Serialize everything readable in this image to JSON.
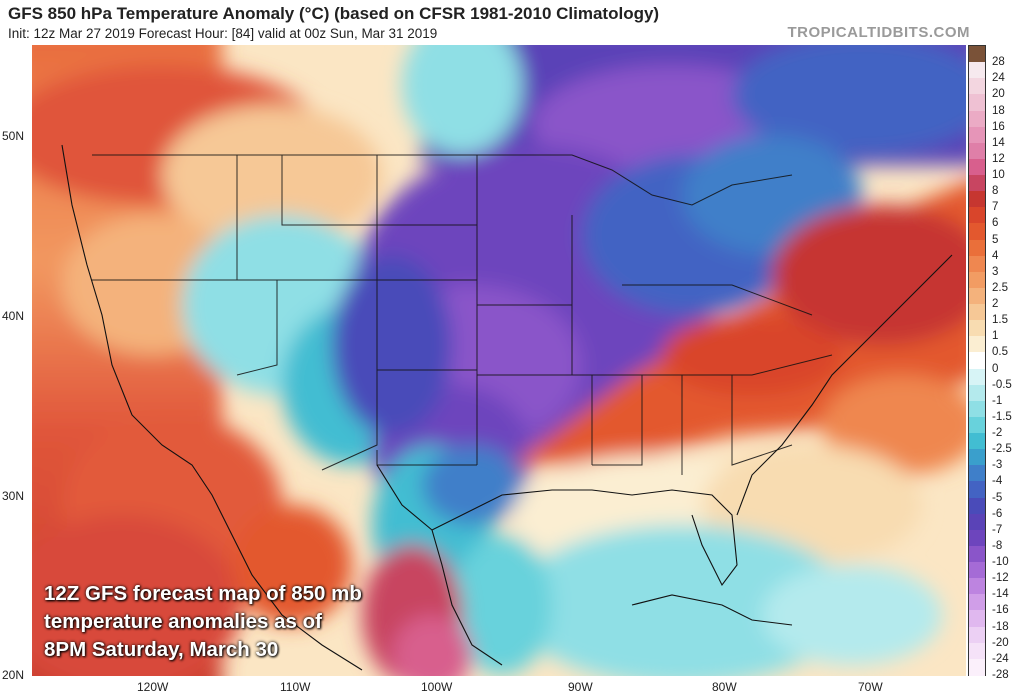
{
  "header": {
    "title": "GFS 850 hPa Temperature Anomaly (°C) (based on CFSR 1981-2010 Climatology)",
    "subtitle": "Init: 12z Mar 27 2019   Forecast Hour: [84]   valid at 00z Sun, Mar 31 2019",
    "brand": "TROPICALTIDBITS.COM"
  },
  "map": {
    "lat_labels": [
      "50N",
      "40N",
      "30N",
      "20N"
    ],
    "lon_labels": [
      "120W",
      "110W",
      "100W",
      "90W",
      "80W",
      "70W"
    ],
    "caption_lines": [
      "12Z GFS forecast map of 850 mb",
      "temperature anomalies as of",
      "8PM Saturday, March 30"
    ]
  },
  "colorbar": {
    "labels": [
      "28",
      "24",
      "20",
      "18",
      "16",
      "14",
      "12",
      "10",
      "8",
      "7",
      "6",
      "5",
      "4",
      "3",
      "2.5",
      "2",
      "1.5",
      "1",
      "0.5",
      "0",
      "-0.5",
      "-1",
      "-1.5",
      "-2",
      "-2.5",
      "-3",
      "-4",
      "-5",
      "-6",
      "-7",
      "-8",
      "-10",
      "-12",
      "-14",
      "-16",
      "-18",
      "-20",
      "-24",
      "-28"
    ],
    "colors": [
      "#7a5238",
      "#f6e9ee",
      "#f3d6e0",
      "#efc1d3",
      "#ebabc5",
      "#e695b8",
      "#df7fa8",
      "#d85f8d",
      "#c84561",
      "#c63630",
      "#d9452b",
      "#e3582e",
      "#ea6f3a",
      "#ef8750",
      "#f29c63",
      "#f4b27c",
      "#f6c896",
      "#f8dcb1",
      "#fbeed2",
      "#ffffff",
      "#d7f4f6",
      "#b4eaed",
      "#8fdfe5",
      "#68d2dc",
      "#42bdd2",
      "#3a9fcc",
      "#3f7fc9",
      "#4363c3",
      "#4a4bb9",
      "#5a43b7",
      "#6d45bd",
      "#8a55c9",
      "#a56bd6",
      "#bd84e0",
      "#d09ee8",
      "#e0b8ef",
      "#ecd0f4",
      "#f5e2f8",
      "#fbf0fb"
    ]
  }
}
